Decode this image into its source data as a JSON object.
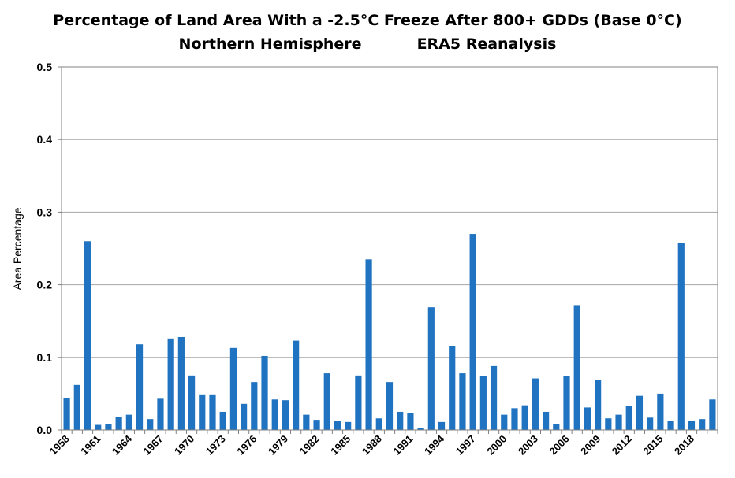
{
  "chart_data": {
    "type": "bar",
    "title": "Percentage of Land Area With a -2.5°C Freeze After 800+ GDDs (Base 0°C)",
    "subtitle_left": "Northern Hemisphere",
    "subtitle_right": "ERA5 Reanalysis",
    "xlabel": "",
    "ylabel": "Area Percentage",
    "ylim": [
      0,
      0.5
    ],
    "yticks": [
      "0.0",
      "0.1",
      "0.2",
      "0.3",
      "0.4",
      "0.5"
    ],
    "grid": true,
    "legend": "none",
    "bar_color": "#1f73c0",
    "xtick_labels": [
      "1958",
      "1961",
      "1964",
      "1967",
      "1970",
      "1973",
      "1976",
      "1979",
      "1982",
      "1985",
      "1988",
      "1991",
      "1994",
      "1997",
      "2000",
      "2003",
      "2006",
      "2009",
      "2012",
      "2015",
      "2018"
    ],
    "categories": [
      1958,
      1959,
      1960,
      1961,
      1962,
      1963,
      1964,
      1965,
      1966,
      1967,
      1968,
      1969,
      1970,
      1971,
      1972,
      1973,
      1974,
      1975,
      1976,
      1977,
      1978,
      1979,
      1980,
      1981,
      1982,
      1983,
      1984,
      1985,
      1986,
      1987,
      1988,
      1989,
      1990,
      1991,
      1992,
      1993,
      1994,
      1995,
      1996,
      1997,
      1998,
      1999,
      2000,
      2001,
      2002,
      2003,
      2004,
      2005,
      2006,
      2007,
      2008,
      2009,
      2010,
      2011,
      2012,
      2013,
      2014,
      2015,
      2016,
      2017,
      2018,
      2019,
      2020
    ],
    "values": [
      0.044,
      0.062,
      0.26,
      0.007,
      0.008,
      0.018,
      0.021,
      0.118,
      0.015,
      0.043,
      0.126,
      0.128,
      0.075,
      0.049,
      0.049,
      0.025,
      0.113,
      0.036,
      0.066,
      0.102,
      0.042,
      0.041,
      0.123,
      0.021,
      0.014,
      0.078,
      0.013,
      0.011,
      0.075,
      0.235,
      0.016,
      0.066,
      0.025,
      0.023,
      0.003,
      0.169,
      0.011,
      0.115,
      0.078,
      0.27,
      0.074,
      0.088,
      0.021,
      0.03,
      0.034,
      0.071,
      0.025,
      0.008,
      0.074,
      0.172,
      0.031,
      0.069,
      0.016,
      0.021,
      0.033,
      0.047,
      0.017,
      0.05,
      0.012,
      0.258,
      0.013,
      0.015,
      0.042
    ]
  }
}
